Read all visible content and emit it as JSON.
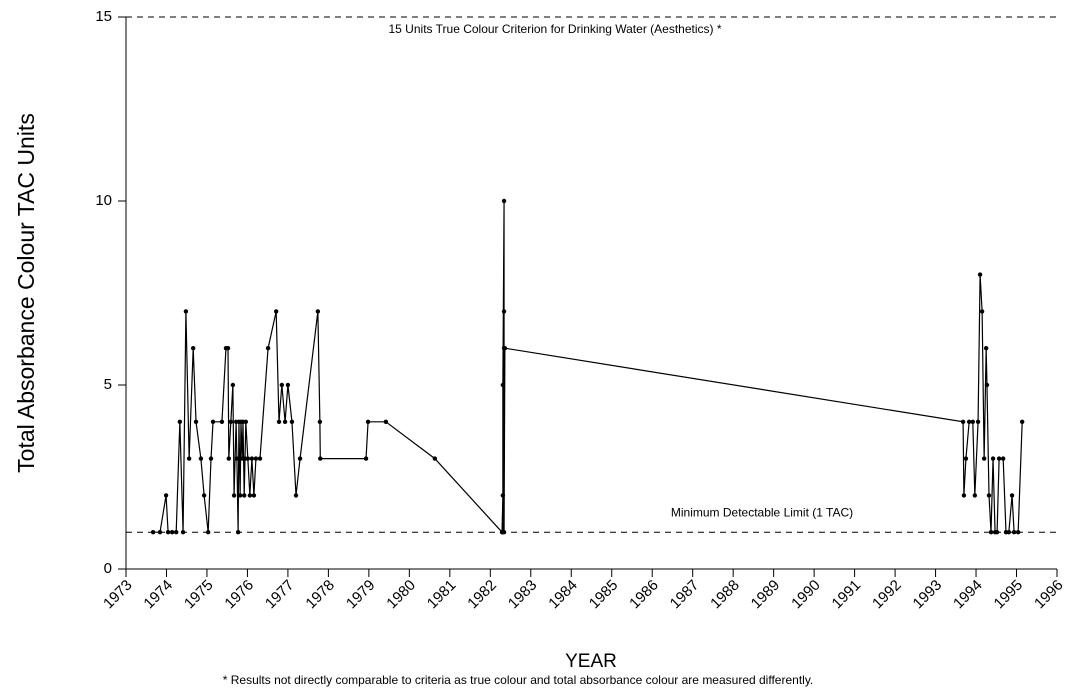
{
  "chart_data": {
    "type": "line",
    "y_axis_label": "Total Absorbance Colour  TAC Units",
    "x_axis_label": "YEAR",
    "footnote": "*  Results not directly comparable to criteria as true colour and total absorbance colour are measured differently.",
    "reference_lines": [
      {
        "value": 15,
        "label": "15 Units True Colour Criterion for Drinking Water (Aesthetics)   *"
      },
      {
        "value": 1,
        "label": "Minimum Detectable Limit (1 TAC)"
      }
    ],
    "xlim": [
      1973,
      1996
    ],
    "xticks": [
      1973,
      1974,
      1975,
      1976,
      1977,
      1978,
      1979,
      1980,
      1981,
      1982,
      1983,
      1984,
      1985,
      1986,
      1987,
      1988,
      1989,
      1990,
      1991,
      1992,
      1993,
      1994,
      1995,
      1996
    ],
    "ylim": [
      0,
      15
    ],
    "yticks": [
      0,
      5,
      10,
      15
    ],
    "color": "#000000",
    "x": [
      1973.67,
      1973.84,
      1973.99,
      1974.04,
      1974.14,
      1974.24,
      1974.33,
      1974.41,
      1974.48,
      1974.56,
      1974.66,
      1974.73,
      1974.85,
      1974.93,
      1975.03,
      1975.1,
      1975.15,
      1975.37,
      1975.47,
      1975.52,
      1975.54,
      1975.59,
      1975.64,
      1975.67,
      1975.72,
      1975.74,
      1975.77,
      1975.79,
      1975.82,
      1975.84,
      1975.87,
      1975.89,
      1975.92,
      1975.94,
      1975.96,
      1976.01,
      1976.06,
      1976.11,
      1976.16,
      1976.21,
      1976.31,
      1976.51,
      1976.71,
      1976.78,
      1976.85,
      1976.93,
      1977.0,
      1977.1,
      1977.2,
      1977.3,
      1977.74,
      1977.79,
      1977.8,
      1978.93,
      1978.98,
      1979.42,
      1980.63,
      1982.29,
      1982.31,
      1982.31,
      1982.31,
      1982.34,
      1982.34,
      1982.34,
      1982.34,
      1982.36,
      1993.68,
      1993.7,
      1993.75,
      1993.83,
      1993.92,
      1993.97,
      1994.05,
      1994.1,
      1994.15,
      1994.2,
      1994.25,
      1994.27,
      1994.32,
      1994.37,
      1994.42,
      1994.47,
      1994.52,
      1994.57,
      1994.67,
      1994.74,
      1994.81,
      1994.89,
      1994.94,
      1995.04,
      1995.14
    ],
    "values": [
      1,
      1,
      2,
      1,
      1,
      1,
      4,
      1,
      7,
      3,
      6,
      4,
      3,
      2,
      1,
      3,
      4,
      4,
      6,
      6,
      3,
      4,
      5,
      2,
      4,
      3,
      1,
      4,
      2,
      4,
      3,
      4,
      2,
      3,
      4,
      3,
      2,
      3,
      2,
      3,
      3,
      6,
      7,
      4,
      5,
      4,
      5,
      4,
      2,
      3,
      7,
      4,
      3,
      3,
      4,
      4,
      3,
      1,
      2,
      1,
      5,
      10,
      7,
      6,
      1,
      6,
      4,
      2,
      3,
      4,
      4,
      2,
      4,
      8,
      7,
      3,
      6,
      5,
      2,
      1,
      3,
      1,
      1,
      3,
      3,
      1,
      1,
      2,
      1,
      1,
      4
    ]
  }
}
